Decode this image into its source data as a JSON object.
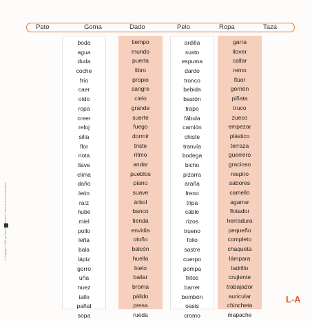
{
  "header": {
    "words": [
      "Pato",
      "Goma",
      "Dado",
      "Pelo",
      "Ropa",
      "Taza"
    ]
  },
  "columns": [
    {
      "style": "white",
      "words": [
        "boda",
        "agua",
        "duda",
        "coche",
        "frío",
        "caer",
        "oído",
        "ropa",
        "creer",
        "reloj",
        "silla",
        "flor",
        "nota",
        "llave",
        "clima",
        "daño",
        "león",
        "raíz",
        "nube",
        "miel",
        "pollo",
        "leña",
        "bala",
        "lápiz",
        "gorro",
        "uña",
        "nuez",
        "tallo",
        "pañal",
        "sopa"
      ]
    },
    {
      "style": "pink",
      "words": [
        "tiempo",
        "mundo",
        "puerta",
        "libro",
        "propio",
        "sangre",
        "cielo",
        "grande",
        "suerte",
        "fuego",
        "dormir",
        "triste",
        "ritmo",
        "andar",
        "pueblos",
        "piano",
        "suave",
        "árbol",
        "banco",
        "tienda",
        "envidia",
        "otoño",
        "balcón",
        "huella",
        "hielo",
        "bailar",
        "broma",
        "pálido",
        "presa",
        "rueda"
      ]
    },
    {
      "style": "white",
      "words": [
        "ardilla",
        "susto",
        "espuma",
        "dardo",
        "tronco",
        "bebida",
        "bastón",
        "trapo",
        "fábula",
        "camión",
        "chiste",
        "tranvía",
        "bodega",
        "bicho",
        "pizarra",
        "araña",
        "freno",
        "tripa",
        "cable",
        "rizos",
        "trueno",
        "folio",
        "sastre",
        "cuerpo",
        "pompa",
        "fritos",
        "barrer",
        "bombón",
        "oasis",
        "cromo"
      ]
    },
    {
      "style": "pink",
      "words": [
        "garra",
        "llover",
        "callar",
        "remo",
        "flúor",
        "gorrión",
        "piñata",
        "truco",
        "zueco",
        "empezar",
        "plástico",
        "terraza",
        "guerrero",
        "gracioso",
        "respiro",
        "sabores",
        "camello",
        "agarrar",
        "flotador",
        "herradura",
        "pequeño",
        "completo",
        "chaqueta",
        "lámpara",
        "ladrillo",
        "crujiente",
        "trabajador",
        "auricular",
        "chincheta",
        "mapache"
      ]
    }
  ],
  "side_note": "© Copyright © 2014 by Pearson Internacional · Todos los derechos reservados",
  "page_label": "L-A"
}
